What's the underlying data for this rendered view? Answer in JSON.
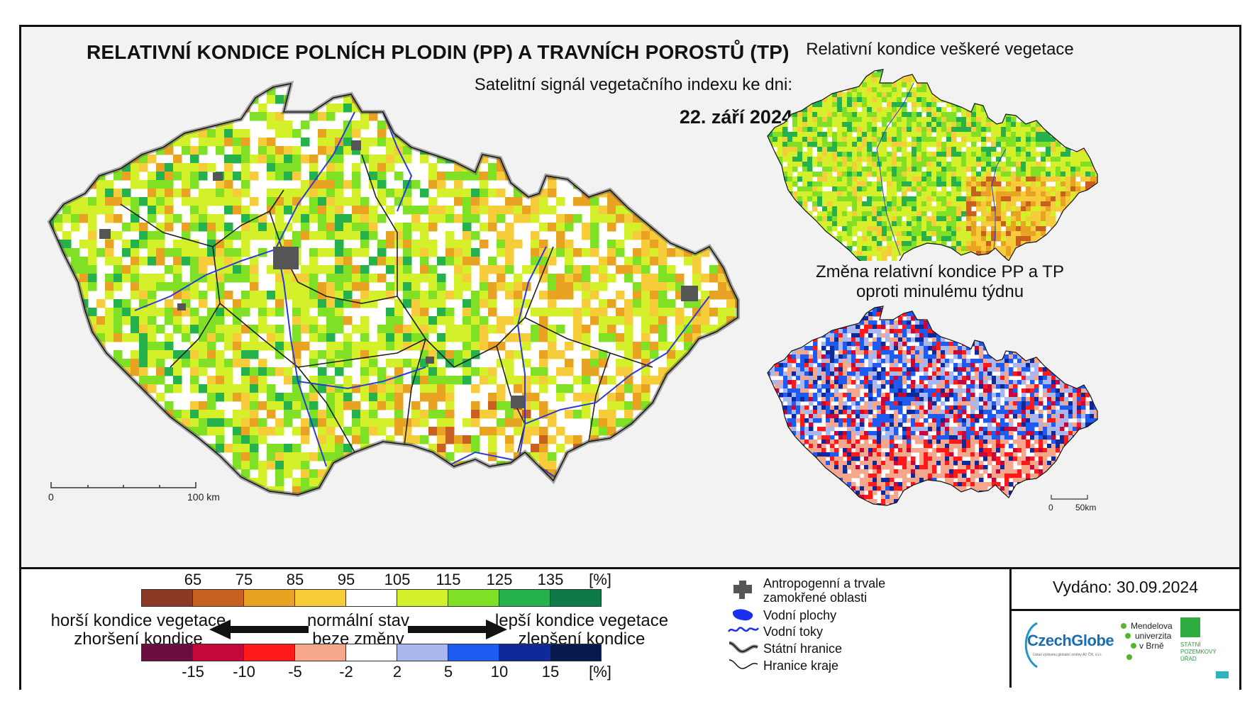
{
  "header": {
    "title": "RELATIVNÍ KONDICE POLNÍCH PLODIN (PP) A TRAVNÍCH POROSTŮ (TP)",
    "subtitle": "Satelitní signál vegetačního indexu ke dni:",
    "date": "22. září 2024"
  },
  "main_map": {
    "scale_start": "0",
    "scale_end": "100 km"
  },
  "right_top": {
    "title": "Relativní kondice veškeré vegetace"
  },
  "right_bottom": {
    "title_line1": "Změna relativní kondice PP a TP",
    "title_line2": "oproti minulému týdnu",
    "scale_start": "0",
    "scale_end": "50km"
  },
  "legend": {
    "top_ticks": [
      "65",
      "75",
      "85",
      "95",
      "105",
      "115",
      "125",
      "135",
      "[%]"
    ],
    "top_colors": [
      "#8b3a26",
      "#c8601f",
      "#e8a322",
      "#f6cc3b",
      "#ffffff",
      "#d3f02b",
      "#7fe026",
      "#25b24c",
      "#0e7a4a"
    ],
    "bottom_ticks": [
      "-15",
      "-10",
      "-5",
      "-2",
      "2",
      "5",
      "10",
      "15",
      "[%]"
    ],
    "bottom_colors": [
      "#6b0d3e",
      "#c4093a",
      "#ff1a1a",
      "#f4a78d",
      "#ffffff",
      "#a8b8ef",
      "#1f5bf0",
      "#0e2a9a",
      "#071a4e"
    ],
    "worse_line1": "horší kondice vegetace",
    "worse_line2": "zhoršení kondice",
    "normal_line1": "normální stav",
    "normal_line2": "beze změny",
    "better_line1": "lepší kondice vegetace",
    "better_line2": "zlepšení kondice"
  },
  "symbols": {
    "anthropogenic_line1": "Antropogenní a trvale",
    "anthropogenic_line2": "zamokřené oblasti",
    "water_bodies": "Vodní plochy",
    "rivers": "Vodní toky",
    "state_border": "Státní hranice",
    "region_border": "Hranice kraje"
  },
  "issued": "Vydáno: 30.09.2024",
  "logos": {
    "czechglobe": "CzechGlobe",
    "czechglobe_sub": "Ústav výzkumu globální změny AV ČR, v.v.i.",
    "mendel_line1": "Mendelova",
    "mendel_line2": "univerzita",
    "mendel_line3": "v Brně",
    "spu_line1": "STÁTNÍ",
    "spu_line2": "POZEMKOVÝ",
    "spu_line3": "ÚŘAD"
  }
}
